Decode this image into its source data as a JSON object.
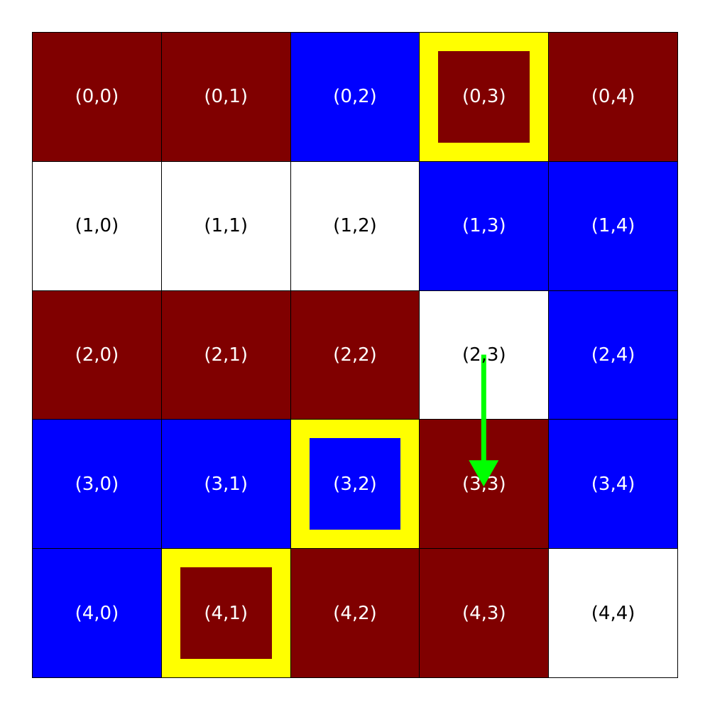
{
  "colors": {
    "maroon": "#800000",
    "blue": "#0000ff",
    "white": "#ffffff",
    "highlight": "#ffff00",
    "arrow": "#00ff00"
  },
  "grid": {
    "rows": 5,
    "cols": 5,
    "cells": [
      [
        "maroon",
        "maroon",
        "blue",
        "maroon",
        "maroon"
      ],
      [
        "white",
        "white",
        "white",
        "blue",
        "blue"
      ],
      [
        "maroon",
        "maroon",
        "maroon",
        "white",
        "blue"
      ],
      [
        "blue",
        "blue",
        "blue",
        "maroon",
        "blue"
      ],
      [
        "blue",
        "maroon",
        "maroon",
        "maroon",
        "white"
      ]
    ],
    "labels": [
      [
        "(0,0)",
        "(0,1)",
        "(0,2)",
        "(0,3)",
        "(0,4)"
      ],
      [
        "(1,0)",
        "(1,1)",
        "(1,2)",
        "(1,3)",
        "(1,4)"
      ],
      [
        "(2,0)",
        "(2,1)",
        "(2,2)",
        "(2,3)",
        "(2,4)"
      ],
      [
        "(3,0)",
        "(3,1)",
        "(3,2)",
        "(3,3)",
        "(3,4)"
      ],
      [
        "(4,0)",
        "(4,1)",
        "(4,2)",
        "(4,3)",
        "(4,4)"
      ]
    ],
    "highlighted": [
      [
        0,
        3
      ],
      [
        3,
        2
      ],
      [
        4,
        1
      ]
    ]
  },
  "arrow": {
    "from": [
      2,
      3
    ],
    "to": [
      3,
      3
    ],
    "direction": "down"
  }
}
